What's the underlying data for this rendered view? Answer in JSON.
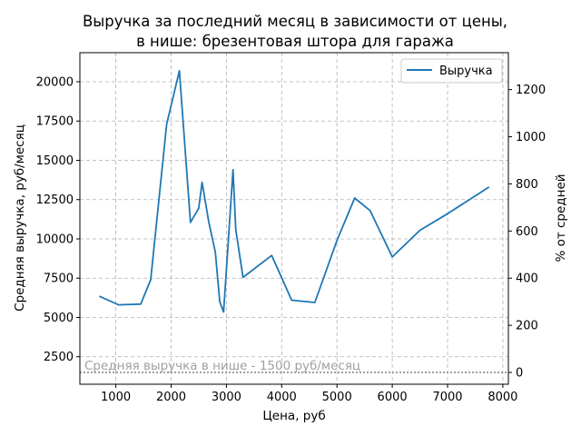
{
  "chart_data": {
    "type": "line",
    "title_line1": "Выручка за последний месяц в зависимости от цены,",
    "title_line2": "в нише: брезентовая штора для гаража",
    "xlabel": "Цена, руб",
    "ylabel": "Средняя выручка, руб/месяц",
    "y2label": "% от средней",
    "xlim": [
      350,
      8100
    ],
    "ylim": [
      750,
      21850
    ],
    "x_ticks": [
      1000,
      2000,
      3000,
      4000,
      5000,
      6000,
      7000,
      8000
    ],
    "y_ticks": [
      2500,
      5000,
      7500,
      10000,
      12500,
      15000,
      17500,
      20000
    ],
    "y2_ticks": [
      0,
      200,
      400,
      600,
      800,
      1000,
      1200
    ],
    "grid": true,
    "legend_position": "top-right",
    "line_color": "#1f77b4",
    "series": [
      {
        "name": "Выручка",
        "x": [
          700,
          1050,
          1450,
          1630,
          1920,
          2150,
          2350,
          2500,
          2560,
          2680,
          2800,
          2880,
          2950,
          3120,
          3170,
          3300,
          3820,
          4180,
          4600,
          5000,
          5320,
          5600,
          6000,
          6500,
          7000,
          7750
        ],
        "y": [
          6350,
          5800,
          5850,
          7400,
          17300,
          20700,
          11050,
          11950,
          13600,
          11100,
          9150,
          6000,
          5350,
          14400,
          10600,
          7550,
          8950,
          6100,
          5950,
          9900,
          12600,
          11800,
          8850,
          10550,
          11600,
          13300
        ]
      }
    ],
    "average": {
      "value": 1500,
      "label": "Средняя выручка в нише - 1500 руб/месяц",
      "color": "#a0a0a0"
    }
  }
}
